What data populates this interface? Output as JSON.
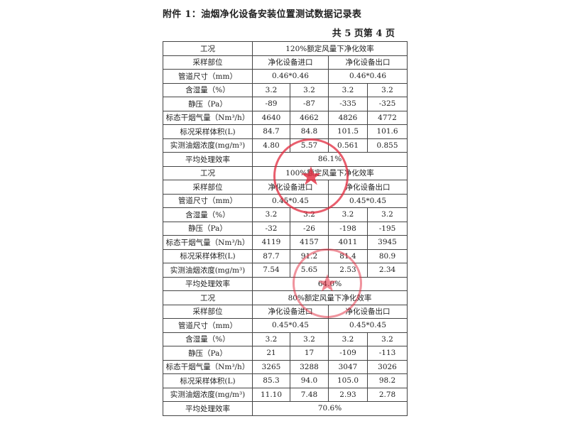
{
  "document": {
    "title": "附件 1：油烟净化设备安装位置测试数据记录表",
    "page_info": "共 5 页第 4 页"
  },
  "row_labels": {
    "condition": "工况",
    "sampling_location": "采样部位",
    "duct_size": "管道尺寸（mm）",
    "moisture": "含湿量（%）",
    "static_pressure": "静压（Pa）",
    "dry_flue_gas": "标态干烟气量（Nm³/h）",
    "sample_volume": "标况采样体积(L)",
    "fume_concentration": "实测油烟浓度(mg/m³)",
    "avg_efficiency": "平均处理效率"
  },
  "sections": [
    {
      "condition": "120%额定风量下净化效率",
      "inlet_label": "净化设备进口",
      "outlet_label": "净化设备出口",
      "inlet_duct": "0.46*0.46",
      "outlet_duct": "0.46*0.46",
      "moisture": [
        "3.2",
        "3.2",
        "3.2",
        "3.2"
      ],
      "static_pressure": [
        "-89",
        "-87",
        "-335",
        "-325"
      ],
      "dry_flue_gas": [
        "4640",
        "4662",
        "4826",
        "4772"
      ],
      "sample_volume": [
        "84.7",
        "84.8",
        "101.5",
        "101.6"
      ],
      "fume_concentration": [
        "4.80",
        "5.57",
        "0.561",
        "0.855"
      ],
      "avg_efficiency": "86.1%"
    },
    {
      "condition": "100%额定风量下净化效率",
      "inlet_label": "净化设备进口",
      "outlet_label": "净化设备出口",
      "inlet_duct": "0.45*0.45",
      "outlet_duct": "0.45*0.45",
      "moisture": [
        "3.2",
        "3.2",
        "3.2",
        "3.2"
      ],
      "static_pressure": [
        "-32",
        "-26",
        "-198",
        "-195"
      ],
      "dry_flue_gas": [
        "4119",
        "4157",
        "4011",
        "3945"
      ],
      "sample_volume": [
        "87.7",
        "91.2",
        "81.4",
        "80.9"
      ],
      "fume_concentration": [
        "7.54",
        "5.65",
        "2.53",
        "2.34"
      ],
      "avg_efficiency": "64.0%"
    },
    {
      "condition": "80%额定风量下净化效率",
      "inlet_label": "净化设备进口",
      "outlet_label": "净化设备出口",
      "inlet_duct": "0.45*0.45",
      "outlet_duct": "0.45*0.45",
      "moisture": [
        "3.2",
        "3.2",
        "3.2",
        "3.2"
      ],
      "static_pressure": [
        "21",
        "17",
        "-109",
        "-113"
      ],
      "dry_flue_gas": [
        "3265",
        "3288",
        "3047",
        "3026"
      ],
      "sample_volume": [
        "85.3",
        "94.0",
        "105.0",
        "98.2"
      ],
      "fume_concentration": [
        "11.10",
        "7.48",
        "2.93",
        "2.78"
      ],
      "avg_efficiency": "70.6%"
    }
  ],
  "stamp_color": "#e2283c"
}
